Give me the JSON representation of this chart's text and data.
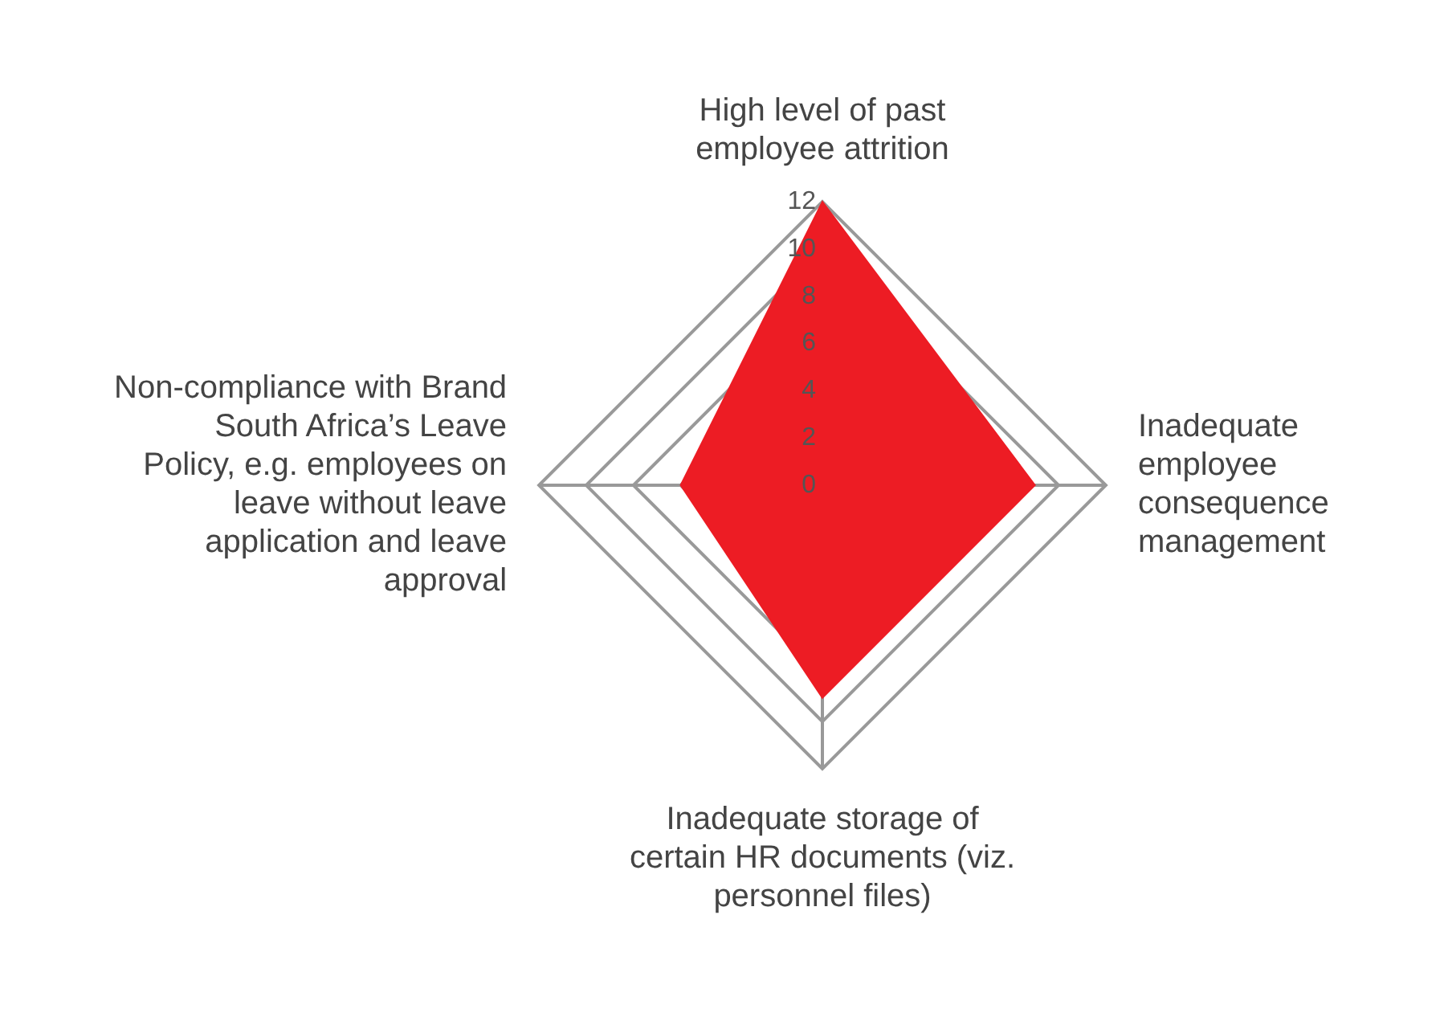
{
  "chart_data": {
    "type": "radar",
    "categories": [
      "High level of past employee attrition",
      "Inadequate employee consequence management",
      "Inadequate storage of certain HR documents (viz. personnel files)",
      "Non-compliance with Brand South Africa’s Leave Policy, e.g. employees on leave without leave application and leave approval"
    ],
    "series": [
      {
        "color": "#ed1c24",
        "values": [
          12,
          9,
          9,
          6
        ]
      }
    ],
    "ylim": [
      0,
      12
    ],
    "yticks": [
      0,
      2,
      4,
      6,
      8,
      10,
      12
    ],
    "grid": true,
    "legend": false
  }
}
